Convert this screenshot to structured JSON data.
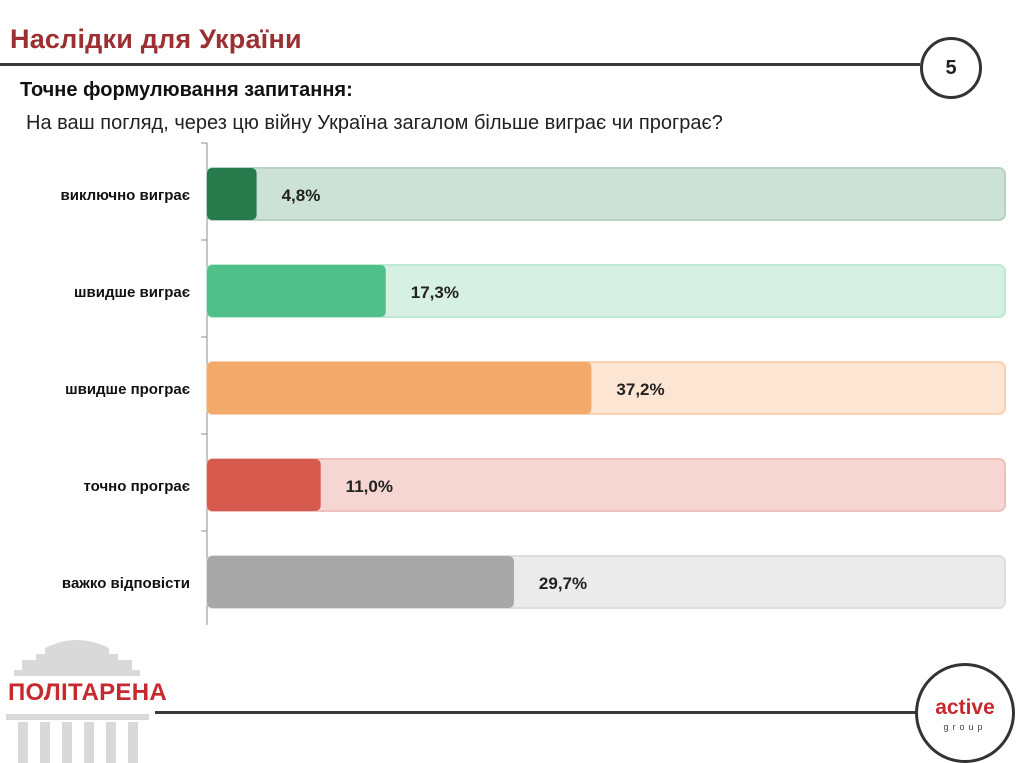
{
  "header": {
    "title": "Наслідки для України",
    "page_number": "5",
    "question_label": "Точне формулювання запитання:",
    "question_text": "На ваш погляд, через цю війну Україна загалом більше виграє чи програє?"
  },
  "chart_data": {
    "type": "bar",
    "orientation": "horizontal",
    "title": "",
    "xlabel": "",
    "ylabel": "",
    "xlim": [
      0,
      100
    ],
    "categories": [
      "виключно виграє",
      "швидше виграє",
      "швидше програє",
      "точно програє",
      "важко відповісти"
    ],
    "values": [
      4.8,
      17.3,
      37.2,
      11.0,
      29.7
    ],
    "labels": [
      "4,8%",
      "17,3%",
      "37,2%",
      "11,0%",
      "29,7%"
    ],
    "colors": [
      "#267a4c",
      "#50c08a",
      "#f2a96a",
      "#d65b4e",
      "#a8a8a8"
    ],
    "track_colors": [
      "#cde2d6",
      "#d6f1e4",
      "#fce5d2",
      "#f5d6d2",
      "#ebebeb"
    ],
    "track_borders": [
      "#b8d3c4",
      "#bfe9d5",
      "#f6d0b3",
      "#eec2bc",
      "#dedede"
    ]
  },
  "footer": {
    "left_logo_text": "ПОЛІТАРЕНА",
    "right_logo_main": "active",
    "right_logo_sub": "group"
  }
}
